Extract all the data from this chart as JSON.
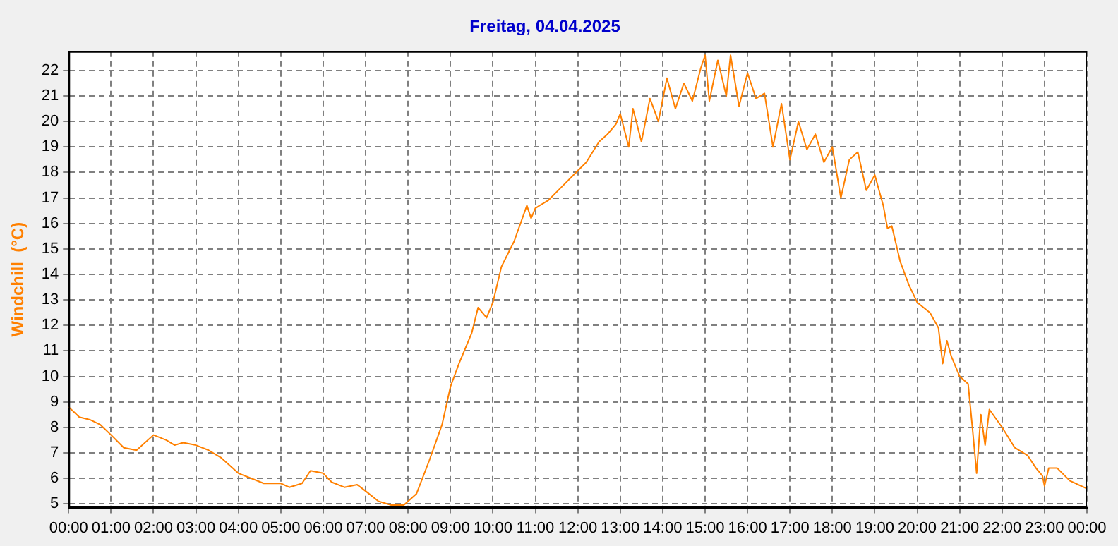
{
  "chart_data": {
    "type": "line",
    "title": "Freitag, 04.04.2025",
    "ylabel": "Windchill  (°C)",
    "x": [
      0,
      0.25,
      0.5,
      0.75,
      1.0,
      1.3,
      1.6,
      2.0,
      2.3,
      2.5,
      2.7,
      3.0,
      3.3,
      3.6,
      4.0,
      4.3,
      4.6,
      5.0,
      5.2,
      5.5,
      5.7,
      6.0,
      6.2,
      6.5,
      6.8,
      7.0,
      7.3,
      7.6,
      7.9,
      8.2,
      8.5,
      8.8,
      9.0,
      9.2,
      9.5,
      9.65,
      9.85,
      10.0,
      10.2,
      10.35,
      10.5,
      10.8,
      10.9,
      11.0,
      11.3,
      11.6,
      11.9,
      12.2,
      12.5,
      12.7,
      12.9,
      13.0,
      13.2,
      13.3,
      13.5,
      13.7,
      13.9,
      14.1,
      14.3,
      14.5,
      14.7,
      14.9,
      15.0,
      15.1,
      15.3,
      15.5,
      15.6,
      15.8,
      16.0,
      16.2,
      16.4,
      16.6,
      16.8,
      17.0,
      17.2,
      17.4,
      17.6,
      17.8,
      18.0,
      18.2,
      18.4,
      18.6,
      18.8,
      19.0,
      19.2,
      19.3,
      19.4,
      19.6,
      19.8,
      20.0,
      20.3,
      20.5,
      20.6,
      20.7,
      20.8,
      21.0,
      21.2,
      21.3,
      21.4,
      21.5,
      21.6,
      21.7,
      22.0,
      22.3,
      22.6,
      22.8,
      22.95,
      23.0,
      23.1,
      23.3,
      23.6,
      24.0
    ],
    "values": [
      8.8,
      8.4,
      8.3,
      8.1,
      7.7,
      7.2,
      7.1,
      7.7,
      7.5,
      7.3,
      7.4,
      7.3,
      7.1,
      6.8,
      6.2,
      6.0,
      5.8,
      5.8,
      5.65,
      5.8,
      6.3,
      6.2,
      5.85,
      5.65,
      5.75,
      5.5,
      5.1,
      4.95,
      4.95,
      5.4,
      6.7,
      8.1,
      9.6,
      10.5,
      11.7,
      12.7,
      12.3,
      12.9,
      14.3,
      14.8,
      15.3,
      16.7,
      16.2,
      16.6,
      16.9,
      17.4,
      17.9,
      18.4,
      19.2,
      19.5,
      19.9,
      20.3,
      19.0,
      20.5,
      19.2,
      20.9,
      20.0,
      21.7,
      20.5,
      21.5,
      20.8,
      22.1,
      22.6,
      20.8,
      22.4,
      21.0,
      22.6,
      20.6,
      21.9,
      20.9,
      21.1,
      19.0,
      20.7,
      18.5,
      20.0,
      18.9,
      19.5,
      18.4,
      19.0,
      17.0,
      18.5,
      18.8,
      17.3,
      17.9,
      16.7,
      15.8,
      15.9,
      14.5,
      13.6,
      12.9,
      12.5,
      11.9,
      10.5,
      11.4,
      10.8,
      10.0,
      9.7,
      8.0,
      6.2,
      8.5,
      7.3,
      8.7,
      8.0,
      7.2,
      6.9,
      6.4,
      6.1,
      5.7,
      6.4,
      6.4,
      5.9,
      5.6
    ],
    "color": "#ff8000",
    "xlim": [
      0,
      24
    ],
    "xticks": [
      {
        "value": 0,
        "label": "00:00"
      },
      {
        "value": 1,
        "label": "01:00"
      },
      {
        "value": 2,
        "label": "02:00"
      },
      {
        "value": 3,
        "label": "03:00"
      },
      {
        "value": 4,
        "label": "04:00"
      },
      {
        "value": 5,
        "label": "05:00"
      },
      {
        "value": 6,
        "label": "06:00"
      },
      {
        "value": 7,
        "label": "07:00"
      },
      {
        "value": 8,
        "label": "08:00"
      },
      {
        "value": 9,
        "label": "09:00"
      },
      {
        "value": 10,
        "label": "10:00"
      },
      {
        "value": 11,
        "label": "11:00"
      },
      {
        "value": 12,
        "label": "12:00"
      },
      {
        "value": 13,
        "label": "13:00"
      },
      {
        "value": 14,
        "label": "14:00"
      },
      {
        "value": 15,
        "label": "15:00"
      },
      {
        "value": 16,
        "label": "16:00"
      },
      {
        "value": 17,
        "label": "17:00"
      },
      {
        "value": 18,
        "label": "18:00"
      },
      {
        "value": 19,
        "label": "19:00"
      },
      {
        "value": 20,
        "label": "20:00"
      },
      {
        "value": 21,
        "label": "21:00"
      },
      {
        "value": 22,
        "label": "22:00"
      },
      {
        "value": 23,
        "label": "23:00"
      },
      {
        "value": 24,
        "label": "00:00"
      }
    ],
    "ylim": [
      4.85,
      22.75
    ],
    "yticks": [
      5,
      6,
      7,
      8,
      9,
      10,
      11,
      12,
      13,
      14,
      15,
      16,
      17,
      18,
      19,
      20,
      21,
      22
    ],
    "grid": true
  }
}
